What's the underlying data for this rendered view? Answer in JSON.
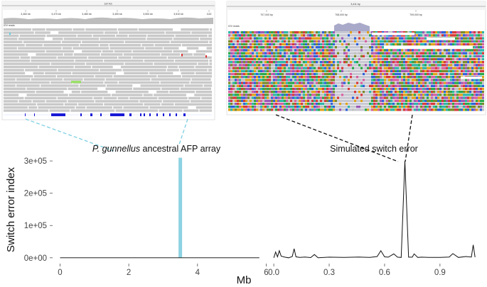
{
  "chart_data": [
    {
      "type": "bar",
      "panel": "left",
      "x": [
        3.5
      ],
      "values": [
        310000
      ],
      "baseline": [
        [
          0,
          0
        ],
        [
          5.8,
          0
        ]
      ],
      "xlim": [
        -0.3,
        5.95
      ],
      "ylim": [
        -18000,
        320000
      ],
      "xticks": [
        0,
        2,
        4,
        6
      ],
      "xtick_labels": [
        "0",
        "2",
        "4",
        "6"
      ],
      "yticks": [
        0,
        100000,
        200000,
        300000
      ],
      "ytick_labels": [
        "0e+00",
        "1e+05",
        "2e+05",
        "3e+05"
      ],
      "annotation": {
        "italic": "P. gunnellus",
        "text": " ancestral AFP array"
      },
      "bar_color": "#8dd3e3",
      "line_color": "#222222"
    },
    {
      "type": "line",
      "panel": "right",
      "x": [
        0.0,
        0.01,
        0.02,
        0.03,
        0.04,
        0.06,
        0.08,
        0.1,
        0.11,
        0.12,
        0.14,
        0.17,
        0.2,
        0.22,
        0.24,
        0.3,
        0.38,
        0.46,
        0.52,
        0.56,
        0.58,
        0.6,
        0.62,
        0.65,
        0.67,
        0.69,
        0.71,
        0.73,
        0.75,
        0.76,
        0.78,
        0.8,
        0.84,
        0.9,
        0.95,
        0.97,
        1.0,
        1.04,
        1.07,
        1.08,
        1.09
      ],
      "y": [
        0,
        18000,
        3000,
        22000,
        5000,
        2000,
        0,
        4000,
        28000,
        3000,
        1000,
        2500,
        600,
        10000,
        0,
        2000,
        1000,
        2500,
        1000,
        4000,
        22000,
        3000,
        2000,
        12000,
        2000,
        1000,
        300000,
        2000,
        2000,
        12000,
        1000,
        2000,
        1000,
        1000,
        2500,
        13000,
        1000,
        4000,
        2500,
        40000,
        2000
      ],
      "xlim": [
        -0.035,
        1.12
      ],
      "ylim": [
        -18000,
        320000
      ],
      "xticks": [
        0.0,
        0.3,
        0.6,
        0.9
      ],
      "xtick_labels": [
        "0.0",
        "0.3",
        "0.6",
        "0.9"
      ],
      "annotation": "Simulated switch error",
      "line_color": "#111111"
    }
  ],
  "ylabel": "Switch error index",
  "xlabel": "Mb",
  "igv_left": {
    "title": "137 Kb",
    "ruler_labels": [
      "3,460 kb",
      "3,470 kb",
      "3,480 kb",
      "3,490 kb",
      "3,500 kb",
      "3,510 kb",
      "3,52"
    ],
    "track_label": "IGV reads"
  },
  "igv_right": {
    "title": "3,411 bp",
    "ruler_labels": [
      "707,000 bp",
      "708,000 bp",
      "709,000 bp",
      "710,0"
    ],
    "track_label": "IGV reads"
  },
  "colors": {
    "connector_left": "#7fcfe3",
    "connector_right": "#111111",
    "read_gray": "#c8c8c8",
    "feature_blue": "#1a1ad6"
  }
}
